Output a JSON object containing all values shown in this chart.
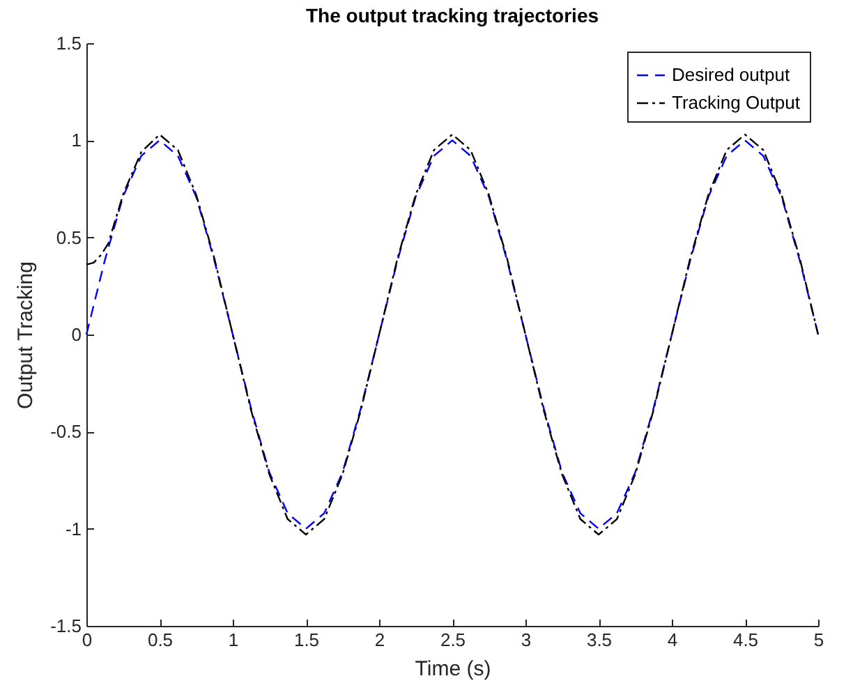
{
  "chart_data": {
    "type": "line",
    "title": "The output tracking trajectories",
    "xlabel": "Time (s)",
    "ylabel": "Output Tracking",
    "xlim": [
      0,
      5
    ],
    "xticks": [
      0,
      0.5,
      1,
      1.5,
      2,
      2.5,
      3,
      3.5,
      4,
      4.5,
      5
    ],
    "ylim": [
      -1.5,
      1.5
    ],
    "yticks": [
      -1.5,
      -1,
      -0.5,
      0,
      0.5,
      1,
      1.5
    ],
    "grid": false,
    "legend": "top right",
    "marker": "none",
    "series": [
      {
        "name": "Desired output",
        "color": "#0000ff",
        "line_style": "dashed",
        "x": [
          0,
          0.125,
          0.25,
          0.375,
          0.5,
          0.625,
          0.75,
          0.875,
          1,
          1.125,
          1.25,
          1.375,
          1.5,
          1.625,
          1.75,
          1.875,
          2,
          2.125,
          2.25,
          2.375,
          2.5,
          2.625,
          2.75,
          2.875,
          3,
          3.125,
          3.25,
          3.375,
          3.5,
          3.625,
          3.75,
          3.875,
          4,
          4.125,
          4.25,
          4.375,
          4.5,
          4.625,
          4.75,
          4.875,
          5
        ],
        "values": [
          0,
          0.38,
          0.71,
          0.92,
          1,
          0.92,
          0.71,
          0.38,
          0,
          -0.38,
          -0.71,
          -0.92,
          -1,
          -0.92,
          -0.71,
          -0.38,
          0,
          0.38,
          0.71,
          0.92,
          1,
          0.92,
          0.71,
          0.38,
          0,
          -0.38,
          -0.71,
          -0.92,
          -1,
          -0.92,
          -0.71,
          -0.38,
          0,
          0.38,
          0.71,
          0.92,
          1,
          0.92,
          0.71,
          0.38,
          0
        ]
      },
      {
        "name": "Tracking Output",
        "color": "#000000",
        "line_style": "dashdot",
        "x": [
          0,
          0.05,
          0.1,
          0.15,
          0.25,
          0.375,
          0.5,
          0.625,
          0.75,
          0.875,
          1,
          1.125,
          1.25,
          1.375,
          1.5,
          1.625,
          1.75,
          1.875,
          2,
          2.125,
          2.25,
          2.375,
          2.5,
          2.625,
          2.75,
          2.875,
          3,
          3.125,
          3.25,
          3.375,
          3.5,
          3.625,
          3.75,
          3.875,
          4,
          4.125,
          4.25,
          4.375,
          4.5,
          4.625,
          4.75,
          4.875,
          5
        ],
        "values": [
          0.36,
          0.37,
          0.41,
          0.47,
          0.72,
          0.94,
          1.03,
          0.95,
          0.72,
          0.39,
          0,
          -0.39,
          -0.72,
          -0.95,
          -1.03,
          -0.95,
          -0.72,
          -0.39,
          0,
          0.39,
          0.72,
          0.95,
          1.03,
          0.95,
          0.72,
          0.39,
          0,
          -0.39,
          -0.72,
          -0.95,
          -1.03,
          -0.95,
          -0.72,
          -0.39,
          0,
          0.39,
          0.72,
          0.95,
          1.03,
          0.95,
          0.72,
          0.39,
          0
        ]
      }
    ]
  }
}
